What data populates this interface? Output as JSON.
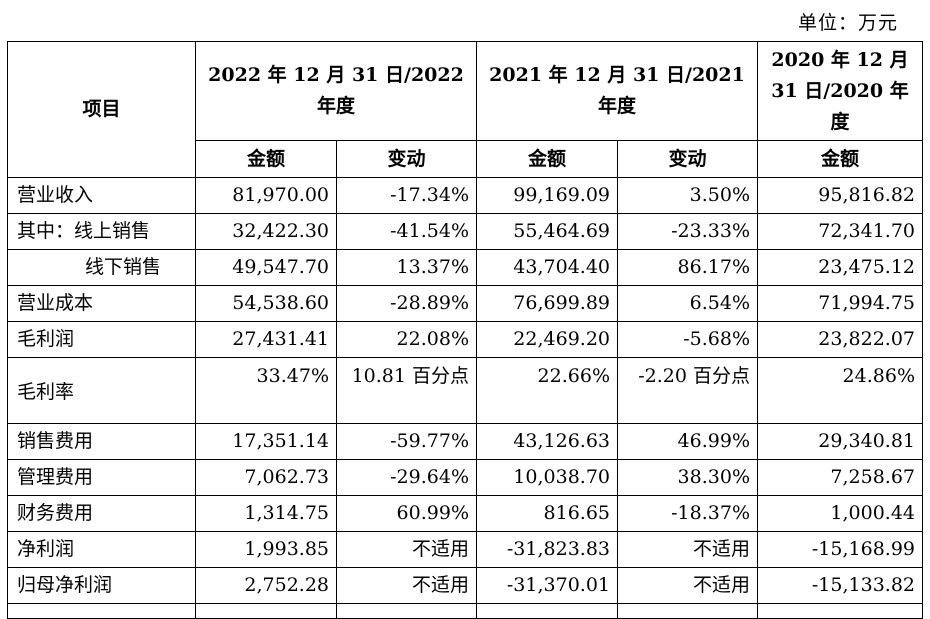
{
  "unit_label": "单位：万元",
  "header": {
    "item": "项目",
    "period_2022": "2022 年 12 月 31 日/2022 年度",
    "period_2021": "2021 年 12 月 31 日/2021 年度",
    "period_2020": "2020 年 12 月 31 日/2020 年度",
    "amount": "金额",
    "change": "变动"
  },
  "rows": [
    {
      "label": "营业收入",
      "v2022": "81,970.00",
      "c2022": "-17.34%",
      "v2021": "99,169.09",
      "c2021": "3.50%",
      "v2020": "95,816.82"
    },
    {
      "label": "其中：线上销售",
      "v2022": "32,422.30",
      "c2022": "-41.54%",
      "v2021": "55,464.69",
      "c2021": "-23.33%",
      "v2020": "72,341.70"
    },
    {
      "label": "线下销售",
      "v2022": "49,547.70",
      "c2022": "13.37%",
      "v2021": "43,704.40",
      "c2021": "86.17%",
      "v2020": "23,475.12"
    },
    {
      "label": "营业成本",
      "v2022": "54,538.60",
      "c2022": "-28.89%",
      "v2021": "76,699.89",
      "c2021": "6.54%",
      "v2020": "71,994.75"
    },
    {
      "label": "毛利润",
      "v2022": "27,431.41",
      "c2022": "22.08%",
      "v2021": "22,469.20",
      "c2021": "-5.68%",
      "v2020": "23,822.07"
    },
    {
      "label": "毛利率",
      "v2022": "33.47%",
      "c2022": "10.81 百分点",
      "v2021": "22.66%",
      "c2021": "-2.20 百分点",
      "v2020": "24.86%"
    },
    {
      "label": "销售费用",
      "v2022": "17,351.14",
      "c2022": "-59.77%",
      "v2021": "43,126.63",
      "c2021": "46.99%",
      "v2020": "29,340.81"
    },
    {
      "label": "管理费用",
      "v2022": "7,062.73",
      "c2022": "-29.64%",
      "v2021": "10,038.70",
      "c2021": "38.30%",
      "v2020": "7,258.67"
    },
    {
      "label": "财务费用",
      "v2022": "1,314.75",
      "c2022": "60.99%",
      "v2021": "816.65",
      "c2021": "-18.37%",
      "v2020": "1,000.44"
    },
    {
      "label": "净利润",
      "v2022": "1,993.85",
      "c2022": "不适用",
      "v2021": "-31,823.83",
      "c2021": "不适用",
      "v2020": "-15,168.99"
    },
    {
      "label": "归母净利润",
      "v2022": "2,752.28",
      "c2022": "不适用",
      "v2021": "-31,370.01",
      "c2021": "不适用",
      "v2020": "-15,133.82"
    }
  ]
}
